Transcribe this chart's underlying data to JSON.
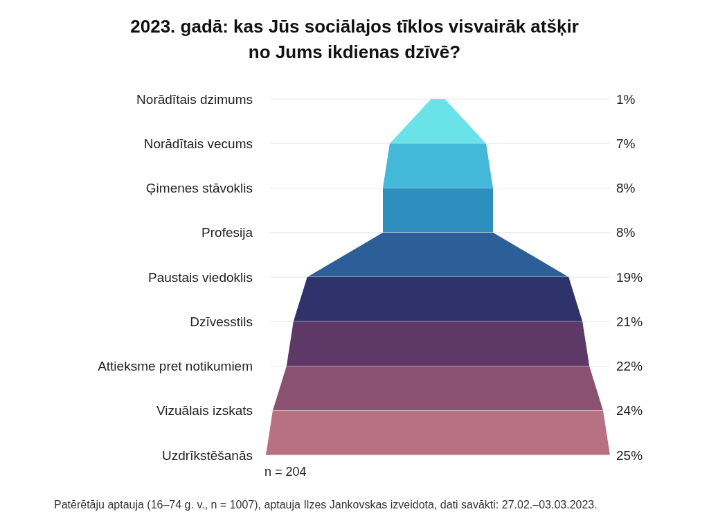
{
  "chart_data": {
    "type": "other",
    "title": "2023. gadā: kas Jūs sociālajos tīklos visvairāk atšķir\nno Jums ikdienas dzīvē?",
    "categories": [
      "Norādītais dzimums",
      "Norādītais vecums",
      "Ģimenes stāvoklis",
      "Profesija",
      "Paustais viedoklis",
      "Dzīvesstils",
      "Attieksme pret notikumiem",
      "Vizuālais izskats",
      "Uzdrīkstēšanās"
    ],
    "values": [
      1,
      7,
      8,
      8,
      19,
      21,
      22,
      24,
      25
    ],
    "value_labels": [
      "1%",
      "7%",
      "8%",
      "8%",
      "19%",
      "21%",
      "22%",
      "24%",
      "25%"
    ],
    "colors": [
      "#6ae3e8",
      "#44b8d8",
      "#2e8fbf",
      "#2c5f98",
      "#2e336b",
      "#5e3866",
      "#8a5170",
      "#b87083",
      null
    ],
    "annotations": [
      "n = 204",
      "Patērētāju aptauja (16–74 g. v., n = 1007), aptauja Ilzes Jankovskas izveidota, dati savākti: 27.02.–03.03.2023."
    ]
  }
}
